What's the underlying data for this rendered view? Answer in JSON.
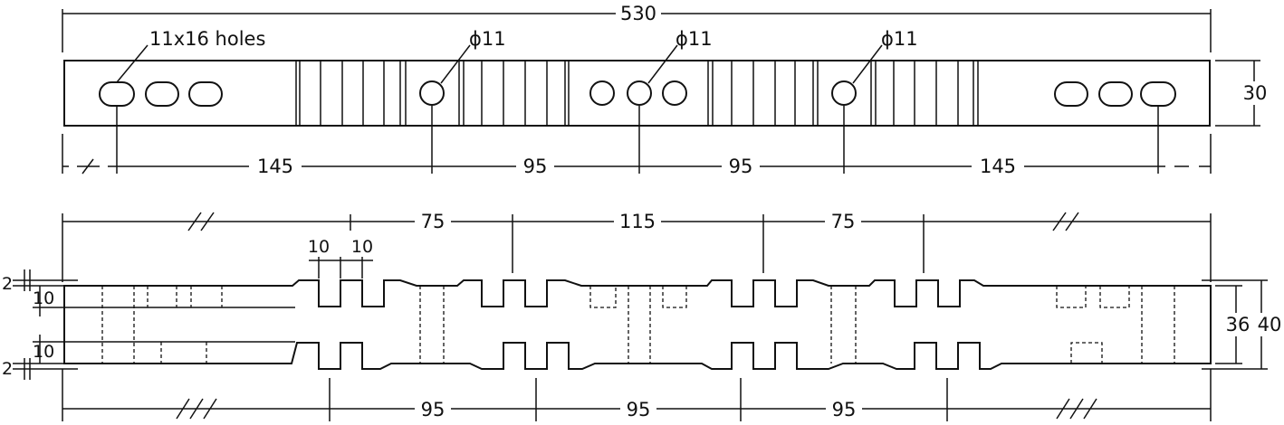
{
  "top_view": {
    "overall_length": "530",
    "width": "30",
    "hole_note": "11x16 holes",
    "diameter_labels": [
      "ϕ11",
      "ϕ11",
      "ϕ11"
    ],
    "spacing_labels": [
      "145",
      "95",
      "95",
      "145"
    ]
  },
  "front_view": {
    "top_spacing_labels": [
      "75",
      "115",
      "75"
    ],
    "slot_width_labels": [
      "10",
      "10"
    ],
    "bottom_spacing_labels": [
      "95",
      "95",
      "95"
    ],
    "left_labels": {
      "top_offset": "2",
      "top_depth": "10",
      "bottom_depth": "10",
      "bottom_offset": "2"
    },
    "right_labels": {
      "inner_height": "36",
      "outer_height": "40"
    },
    "break_marks": [
      "//",
      "//",
      "///",
      "///"
    ]
  }
}
